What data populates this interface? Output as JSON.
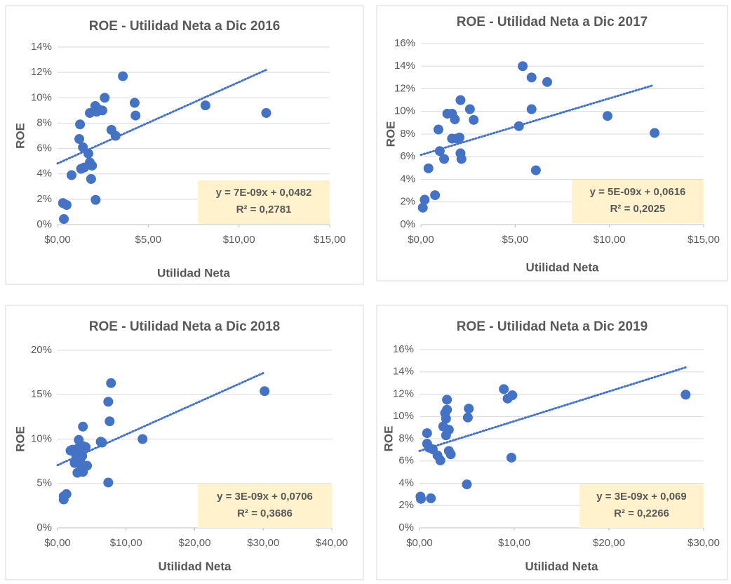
{
  "chart_data": [
    {
      "type": "scatter",
      "title": "ROE - Utilidad Neta a Dic 2016",
      "x_label": "Utilidad Neta",
      "y_label": "ROE",
      "color": "#4472c4",
      "grid": true,
      "x": [
        0.35,
        0.3,
        0.5,
        0.77,
        1.24,
        1.2,
        1.4,
        1.3,
        1.47,
        1.7,
        1.78,
        1.9,
        1.85,
        1.78,
        2.08,
        2.16,
        2.47,
        2.24,
        2.6,
        2.1,
        2.97,
        3.2,
        3.6,
        4.25,
        4.3,
        8.15,
        11.5
      ],
      "values": [
        0.44,
        1.7,
        1.55,
        3.9,
        7.9,
        6.75,
        6.1,
        4.4,
        4.5,
        5.6,
        4.9,
        4.65,
        3.6,
        8.8,
        9.35,
        8.9,
        9.0,
        9.1,
        10.0,
        1.95,
        7.47,
        7.0,
        11.7,
        9.6,
        8.6,
        9.4,
        8.8
      ],
      "xlim": [
        0,
        15
      ],
      "xticks": [
        {
          "value": 0,
          "label": "$0,00"
        },
        {
          "value": 5,
          "label": "$5,00"
        },
        {
          "value": 10,
          "label": "$10,00"
        },
        {
          "value": 15,
          "label": "$15,00"
        }
      ],
      "ylim": [
        0,
        14
      ],
      "yticks": [
        {
          "value": 0,
          "label": "0%"
        },
        {
          "value": 2,
          "label": "2%"
        },
        {
          "value": 4,
          "label": "4%"
        },
        {
          "value": 6,
          "label": "6%"
        },
        {
          "value": 8,
          "label": "8%"
        },
        {
          "value": 10,
          "label": "10%"
        },
        {
          "value": 12,
          "label": "12%"
        },
        {
          "value": 14,
          "label": "14%"
        }
      ],
      "trendline": {
        "x": [
          0,
          11.5
        ],
        "y": [
          4.82,
          12.2
        ]
      },
      "annotation": [
        "y = 7E-09x + 0,0482",
        "R² = 0,2781"
      ]
    },
    {
      "type": "scatter",
      "title": "ROE - Utilidad Neta a Dic 2017",
      "x_label": "Utilidad Neta",
      "y_label": "ROE",
      "color": "#4472c4",
      "grid": true,
      "x": [
        0.1,
        0.2,
        0.4,
        0.75,
        0.93,
        1.0,
        1.23,
        1.4,
        1.65,
        1.8,
        1.65,
        1.9,
        2.05,
        2.1,
        2.1,
        2.15,
        2.6,
        2.8,
        5.2,
        5.4,
        5.87,
        5.87,
        6.1,
        6.7,
        9.9,
        12.4
      ],
      "values": [
        1.5,
        2.2,
        4.97,
        2.6,
        8.4,
        6.5,
        5.8,
        9.8,
        9.8,
        9.3,
        7.6,
        7.6,
        7.7,
        11.0,
        6.3,
        5.8,
        10.2,
        9.25,
        8.7,
        14.0,
        13.0,
        10.2,
        4.8,
        12.6,
        9.6,
        8.1
      ],
      "xlim": [
        0,
        15
      ],
      "xticks": [
        {
          "value": 0,
          "label": "$0,00"
        },
        {
          "value": 5,
          "label": "$5,00"
        },
        {
          "value": 10,
          "label": "$10,00"
        },
        {
          "value": 15,
          "label": "$15,00"
        }
      ],
      "ylim": [
        0,
        16
      ],
      "yticks": [
        {
          "value": 0,
          "label": "0%"
        },
        {
          "value": 2,
          "label": "2%"
        },
        {
          "value": 4,
          "label": "4%"
        },
        {
          "value": 6,
          "label": "6%"
        },
        {
          "value": 8,
          "label": "8%"
        },
        {
          "value": 10,
          "label": "10%"
        },
        {
          "value": 12,
          "label": "12%"
        },
        {
          "value": 14,
          "label": "14%"
        },
        {
          "value": 16,
          "label": "16%"
        }
      ],
      "trendline": {
        "x": [
          0,
          12.3
        ],
        "y": [
          6.16,
          12.3
        ]
      },
      "annotation": [
        "y = 5E-09x + 0,0616",
        "R² = 0,2025"
      ]
    },
    {
      "type": "scatter",
      "title": "ROE - Utilidad Neta a Dic 2018",
      "x_label": "Utilidad Neta",
      "y_label": "ROE",
      "color": "#4472c4",
      "grid": true,
      "x": [
        0.9,
        0.9,
        1.3,
        1.9,
        2.2,
        2.7,
        2.9,
        2.5,
        2.9,
        3.1,
        3.3,
        3.6,
        3.7,
        3.7,
        3.7,
        4.1,
        4.3,
        3.5,
        6.3,
        6.5,
        7.4,
        7.4,
        7.6,
        7.8,
        12.4,
        30.2
      ],
      "values": [
        3.2,
        3.55,
        3.8,
        8.7,
        8.8,
        8.2,
        8.9,
        7.3,
        6.2,
        9.9,
        7.5,
        8.1,
        9.2,
        11.4,
        6.3,
        9.1,
        7.0,
        6.7,
        9.7,
        9.6,
        14.2,
        5.1,
        12.0,
        16.3,
        10.0,
        15.4
      ],
      "xlim": [
        0,
        40
      ],
      "xticks": [
        {
          "value": 0,
          "label": "$0,00"
        },
        {
          "value": 10,
          "label": "$10,00"
        },
        {
          "value": 20,
          "label": "$20,00"
        },
        {
          "value": 30,
          "label": "$30,00"
        },
        {
          "value": 40,
          "label": "$40,00"
        }
      ],
      "ylim": [
        0,
        20
      ],
      "yticks": [
        {
          "value": 0,
          "label": "0%"
        },
        {
          "value": 5,
          "label": "5%"
        },
        {
          "value": 10,
          "label": "10%"
        },
        {
          "value": 15,
          "label": "15%"
        },
        {
          "value": 20,
          "label": "20%"
        }
      ],
      "trendline": {
        "x": [
          0,
          30.2
        ],
        "y": [
          7.06,
          17.5
        ]
      },
      "annotation": [
        "y = 3E-09x + 0,0706",
        "R² = 0,3686"
      ]
    },
    {
      "type": "scatter",
      "title": "ROE - Utilidad Neta a Dic 2019",
      "x_label": "Utilidad Neta",
      "y_label": "ROE",
      "color": "#4472c4",
      "grid": true,
      "x": [
        0.1,
        0.15,
        0.8,
        0.8,
        1.0,
        1.2,
        1.4,
        1.9,
        2.2,
        2.5,
        2.8,
        2.7,
        2.8,
        2.9,
        2.9,
        3.1,
        3.1,
        3.3,
        5.0,
        5.1,
        5.2,
        8.9,
        9.3,
        9.8,
        9.7,
        28.1
      ],
      "values": [
        2.8,
        2.6,
        8.5,
        7.55,
        7.2,
        2.65,
        7.05,
        6.5,
        6.05,
        9.1,
        8.3,
        10.3,
        9.8,
        11.5,
        10.6,
        8.8,
        6.9,
        6.6,
        3.9,
        9.9,
        10.7,
        12.45,
        11.6,
        11.9,
        6.3,
        11.95
      ],
      "xlim": [
        0,
        30
      ],
      "xticks": [
        {
          "value": 0,
          "label": "$0,00"
        },
        {
          "value": 10,
          "label": "$10,00"
        },
        {
          "value": 20,
          "label": "$20,00"
        },
        {
          "value": 30,
          "label": "$30,00"
        }
      ],
      "ylim": [
        0,
        16
      ],
      "yticks": [
        {
          "value": 0,
          "label": "0%"
        },
        {
          "value": 2,
          "label": "2%"
        },
        {
          "value": 4,
          "label": "4%"
        },
        {
          "value": 6,
          "label": "6%"
        },
        {
          "value": 8,
          "label": "8%"
        },
        {
          "value": 10,
          "label": "10%"
        },
        {
          "value": 12,
          "label": "12%"
        },
        {
          "value": 14,
          "label": "14%"
        },
        {
          "value": 16,
          "label": "16%"
        }
      ],
      "trendline": {
        "x": [
          0,
          28.1
        ],
        "y": [
          6.9,
          14.4
        ]
      },
      "annotation": [
        "y = 3E-09x + 0,069",
        "R² = 0,2266"
      ]
    }
  ]
}
